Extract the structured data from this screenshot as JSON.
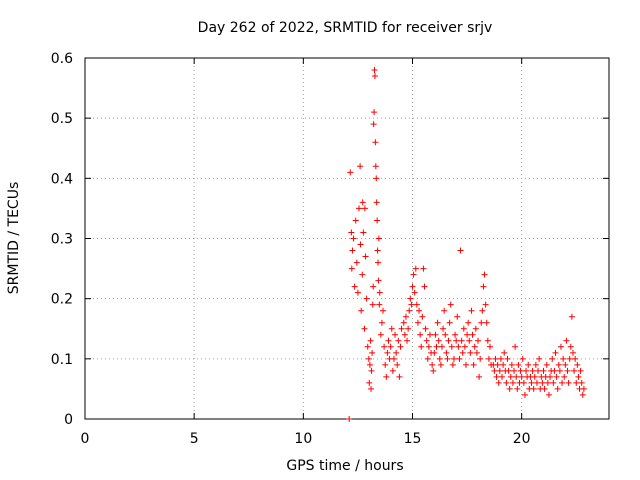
{
  "chart_data": {
    "type": "scatter",
    "title": "Day 262 of 2022, SRMTID for receiver srjv",
    "xlabel": "GPS time / hours",
    "ylabel": "SRMTID / TECUs",
    "xlim": [
      0,
      24
    ],
    "ylim": [
      0,
      0.6
    ],
    "xticks": [
      0,
      5,
      10,
      15,
      20
    ],
    "yticks": [
      0,
      0.1,
      0.2,
      0.3,
      0.4,
      0.5,
      0.6
    ],
    "xtick_labels": [
      "0",
      "5",
      "10",
      "15",
      "20"
    ],
    "ytick_labels": [
      "0",
      "0.1",
      "0.2",
      "0.3",
      "0.4",
      "0.5",
      "0.6"
    ],
    "grid": true,
    "marker": "+",
    "color": "#ff0000",
    "series": [
      {
        "name": "SRMTID",
        "points": [
          [
            12.1,
            0.0
          ],
          [
            12.15,
            0.41
          ],
          [
            12.2,
            0.31
          ],
          [
            12.22,
            0.25
          ],
          [
            12.25,
            0.28
          ],
          [
            12.3,
            0.3
          ],
          [
            12.35,
            0.22
          ],
          [
            12.4,
            0.33
          ],
          [
            12.45,
            0.26
          ],
          [
            12.5,
            0.21
          ],
          [
            12.55,
            0.35
          ],
          [
            12.6,
            0.42
          ],
          [
            12.62,
            0.29
          ],
          [
            12.65,
            0.18
          ],
          [
            12.7,
            0.24
          ],
          [
            12.72,
            0.36
          ],
          [
            12.75,
            0.31
          ],
          [
            12.8,
            0.15
          ],
          [
            12.82,
            0.35
          ],
          [
            12.85,
            0.27
          ],
          [
            12.9,
            0.2
          ],
          [
            12.95,
            0.12
          ],
          [
            13.0,
            0.1
          ],
          [
            13.02,
            0.06
          ],
          [
            13.05,
            0.09
          ],
          [
            13.08,
            0.13
          ],
          [
            13.1,
            0.05
          ],
          [
            13.12,
            0.08
          ],
          [
            13.15,
            0.11
          ],
          [
            13.18,
            0.19
          ],
          [
            13.2,
            0.22
          ],
          [
            13.22,
            0.49
          ],
          [
            13.24,
            0.51
          ],
          [
            13.26,
            0.58
          ],
          [
            13.28,
            0.57
          ],
          [
            13.3,
            0.46
          ],
          [
            13.32,
            0.42
          ],
          [
            13.34,
            0.4
          ],
          [
            13.36,
            0.36
          ],
          [
            13.38,
            0.33
          ],
          [
            13.4,
            0.28
          ],
          [
            13.42,
            0.26
          ],
          [
            13.44,
            0.23
          ],
          [
            13.46,
            0.3
          ],
          [
            13.48,
            0.19
          ],
          [
            13.5,
            0.21
          ],
          [
            13.55,
            0.14
          ],
          [
            13.6,
            0.16
          ],
          [
            13.65,
            0.18
          ],
          [
            13.7,
            0.12
          ],
          [
            13.75,
            0.09
          ],
          [
            13.8,
            0.07
          ],
          [
            13.85,
            0.11
          ],
          [
            13.9,
            0.13
          ],
          [
            13.95,
            0.1
          ],
          [
            14.0,
            0.12
          ],
          [
            14.05,
            0.15
          ],
          [
            14.1,
            0.08
          ],
          [
            14.15,
            0.1
          ],
          [
            14.2,
            0.14
          ],
          [
            14.25,
            0.11
          ],
          [
            14.3,
            0.09
          ],
          [
            14.35,
            0.13
          ],
          [
            14.4,
            0.07
          ],
          [
            14.45,
            0.12
          ],
          [
            14.5,
            0.15
          ],
          [
            14.6,
            0.16
          ],
          [
            14.65,
            0.14
          ],
          [
            14.7,
            0.17
          ],
          [
            14.75,
            0.13
          ],
          [
            14.8,
            0.15
          ],
          [
            14.85,
            0.18
          ],
          [
            14.9,
            0.2
          ],
          [
            14.95,
            0.19
          ],
          [
            15.0,
            0.22
          ],
          [
            15.05,
            0.24
          ],
          [
            15.1,
            0.21
          ],
          [
            15.15,
            0.25
          ],
          [
            15.2,
            0.19
          ],
          [
            15.25,
            0.16
          ],
          [
            15.3,
            0.18
          ],
          [
            15.35,
            0.14
          ],
          [
            15.4,
            0.12
          ],
          [
            15.45,
            0.17
          ],
          [
            15.5,
            0.25
          ],
          [
            15.55,
            0.22
          ],
          [
            15.6,
            0.15
          ],
          [
            15.65,
            0.13
          ],
          [
            15.7,
            0.1
          ],
          [
            15.75,
            0.12
          ],
          [
            15.8,
            0.14
          ],
          [
            15.85,
            0.11
          ],
          [
            15.9,
            0.09
          ],
          [
            15.95,
            0.08
          ],
          [
            16.0,
            0.11
          ],
          [
            16.05,
            0.14
          ],
          [
            16.1,
            0.12
          ],
          [
            16.15,
            0.16
          ],
          [
            16.2,
            0.13
          ],
          [
            16.25,
            0.1
          ],
          [
            16.3,
            0.09
          ],
          [
            16.35,
            0.12
          ],
          [
            16.4,
            0.15
          ],
          [
            16.45,
            0.18
          ],
          [
            16.5,
            0.14
          ],
          [
            16.55,
            0.11
          ],
          [
            16.6,
            0.1
          ],
          [
            16.65,
            0.13
          ],
          [
            16.7,
            0.16
          ],
          [
            16.75,
            0.19
          ],
          [
            16.8,
            0.12
          ],
          [
            16.85,
            0.09
          ],
          [
            16.9,
            0.1
          ],
          [
            16.95,
            0.14
          ],
          [
            17.0,
            0.13
          ],
          [
            17.05,
            0.17
          ],
          [
            17.1,
            0.12
          ],
          [
            17.15,
            0.1
          ],
          [
            17.2,
            0.28
          ],
          [
            17.25,
            0.13
          ],
          [
            17.3,
            0.11
          ],
          [
            17.35,
            0.15
          ],
          [
            17.4,
            0.12
          ],
          [
            17.45,
            0.09
          ],
          [
            17.5,
            0.14
          ],
          [
            17.55,
            0.16
          ],
          [
            17.6,
            0.13
          ],
          [
            17.65,
            0.11
          ],
          [
            17.7,
            0.18
          ],
          [
            17.75,
            0.14
          ],
          [
            17.8,
            0.09
          ],
          [
            17.85,
            0.12
          ],
          [
            17.9,
            0.15
          ],
          [
            17.95,
            0.11
          ],
          [
            18.0,
            0.13
          ],
          [
            18.05,
            0.07
          ],
          [
            18.1,
            0.1
          ],
          [
            18.15,
            0.16
          ],
          [
            18.2,
            0.18
          ],
          [
            18.25,
            0.22
          ],
          [
            18.3,
            0.24
          ],
          [
            18.35,
            0.19
          ],
          [
            18.4,
            0.16
          ],
          [
            18.45,
            0.13
          ],
          [
            18.5,
            0.1
          ],
          [
            18.55,
            0.12
          ],
          [
            18.6,
            0.09
          ],
          [
            18.7,
            0.09
          ],
          [
            18.75,
            0.08
          ],
          [
            18.8,
            0.1
          ],
          [
            18.85,
            0.07
          ],
          [
            18.9,
            0.09
          ],
          [
            18.95,
            0.06
          ],
          [
            19.0,
            0.08
          ],
          [
            19.05,
            0.1
          ],
          [
            19.1,
            0.07
          ],
          [
            19.15,
            0.09
          ],
          [
            19.2,
            0.11
          ],
          [
            19.25,
            0.08
          ],
          [
            19.3,
            0.06
          ],
          [
            19.35,
            0.1
          ],
          [
            19.4,
            0.08
          ],
          [
            19.45,
            0.05
          ],
          [
            19.5,
            0.07
          ],
          [
            19.55,
            0.09
          ],
          [
            19.6,
            0.06
          ],
          [
            19.65,
            0.08
          ],
          [
            19.7,
            0.12
          ],
          [
            19.75,
            0.07
          ],
          [
            19.8,
            0.05
          ],
          [
            19.85,
            0.09
          ],
          [
            19.9,
            0.06
          ],
          [
            19.95,
            0.08
          ],
          [
            20.0,
            0.07
          ],
          [
            20.05,
            0.1
          ],
          [
            20.1,
            0.06
          ],
          [
            20.15,
            0.04
          ],
          [
            20.2,
            0.08
          ],
          [
            20.25,
            0.07
          ],
          [
            20.3,
            0.09
          ],
          [
            20.35,
            0.05
          ],
          [
            20.4,
            0.07
          ],
          [
            20.45,
            0.06
          ],
          [
            20.5,
            0.08
          ],
          [
            20.55,
            0.05
          ],
          [
            20.6,
            0.07
          ],
          [
            20.65,
            0.09
          ],
          [
            20.7,
            0.06
          ],
          [
            20.75,
            0.08
          ],
          [
            20.8,
            0.1
          ],
          [
            20.85,
            0.05
          ],
          [
            20.9,
            0.07
          ],
          [
            20.95,
            0.06
          ],
          [
            21.0,
            0.08
          ],
          [
            21.05,
            0.05
          ],
          [
            21.1,
            0.07
          ],
          [
            21.15,
            0.09
          ],
          [
            21.2,
            0.06
          ],
          [
            21.25,
            0.04
          ],
          [
            21.3,
            0.07
          ],
          [
            21.35,
            0.08
          ],
          [
            21.4,
            0.1
          ],
          [
            21.45,
            0.06
          ],
          [
            21.5,
            0.08
          ],
          [
            21.55,
            0.11
          ],
          [
            21.6,
            0.07
          ],
          [
            21.65,
            0.05
          ],
          [
            21.7,
            0.09
          ],
          [
            21.75,
            0.08
          ],
          [
            21.8,
            0.12
          ],
          [
            21.85,
            0.06
          ],
          [
            21.9,
            0.1
          ],
          [
            21.95,
            0.07
          ],
          [
            22.0,
            0.09
          ],
          [
            22.05,
            0.13
          ],
          [
            22.1,
            0.08
          ],
          [
            22.15,
            0.06
          ],
          [
            22.2,
            0.1
          ],
          [
            22.25,
            0.12
          ],
          [
            22.3,
            0.17
          ],
          [
            22.35,
            0.11
          ],
          [
            22.4,
            0.08
          ],
          [
            22.45,
            0.1
          ],
          [
            22.5,
            0.06
          ],
          [
            22.55,
            0.09
          ],
          [
            22.6,
            0.07
          ],
          [
            22.65,
            0.05
          ],
          [
            22.7,
            0.08
          ],
          [
            22.75,
            0.06
          ],
          [
            22.8,
            0.04
          ],
          [
            22.85,
            0.05
          ]
        ]
      }
    ]
  }
}
